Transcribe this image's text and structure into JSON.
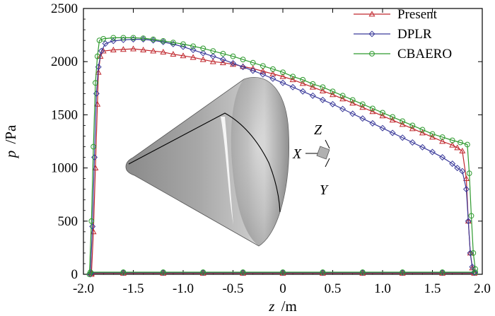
{
  "chart_data": {
    "type": "line",
    "xlabel": {
      "var": "z",
      "unit": "/m"
    },
    "ylabel": {
      "var": "p",
      "unit": "/Pa"
    },
    "xlim": [
      -2.0,
      2.0
    ],
    "ylim": [
      0,
      2500
    ],
    "xticks": [
      -2.0,
      -1.5,
      -1.0,
      -0.5,
      0,
      0.5,
      1.0,
      1.5,
      2.0
    ],
    "xtick_labels": [
      "-2.0",
      "-1.5",
      "-1.0",
      "-0.5",
      "0",
      "0.5",
      "1.0",
      "1.5",
      "2.0"
    ],
    "yticks": [
      0,
      500,
      1000,
      1500,
      2000,
      2500
    ],
    "ytick_labels": [
      "0",
      "500",
      "1000",
      "1500",
      "2000",
      "2500"
    ],
    "legend_position": "top-right",
    "series": [
      {
        "name": "Present",
        "color": "#c0272d",
        "marker": "triangle",
        "x": [
          -1.92,
          -1.9,
          -1.88,
          -1.86,
          -1.85,
          -1.83,
          -1.8,
          -1.7,
          -1.6,
          -1.5,
          -1.4,
          -1.3,
          -1.2,
          -1.1,
          -1.0,
          -0.9,
          -0.8,
          -0.7,
          -0.6,
          -0.5,
          -0.4,
          -0.3,
          -0.2,
          -0.1,
          0.0,
          0.1,
          0.2,
          0.3,
          0.4,
          0.5,
          0.6,
          0.7,
          0.8,
          0.9,
          1.0,
          1.1,
          1.2,
          1.3,
          1.4,
          1.5,
          1.6,
          1.7,
          1.75,
          1.8,
          1.84,
          1.86,
          1.88,
          1.9,
          1.92,
          -1.92,
          -1.6,
          -1.2,
          -0.8,
          -0.4,
          0.0,
          0.4,
          0.8,
          1.2,
          1.6,
          1.92
        ],
        "y": [
          0,
          400,
          1000,
          1600,
          1900,
          2050,
          2100,
          2110,
          2115,
          2120,
          2110,
          2100,
          2090,
          2070,
          2055,
          2040,
          2020,
          2000,
          1990,
          1975,
          1955,
          1935,
          1910,
          1885,
          1860,
          1830,
          1795,
          1760,
          1725,
          1690,
          1650,
          1610,
          1570,
          1530,
          1490,
          1450,
          1410,
          1370,
          1330,
          1290,
          1250,
          1215,
          1190,
          1160,
          900,
          500,
          200,
          60,
          20,
          10,
          10,
          10,
          10,
          10,
          10,
          10,
          10,
          10,
          10,
          10
        ]
      },
      {
        "name": "DPLR",
        "color": "#3a3a9a",
        "marker": "diamond",
        "x": [
          -1.93,
          -1.91,
          -1.89,
          -1.87,
          -1.85,
          -1.82,
          -1.78,
          -1.7,
          -1.6,
          -1.5,
          -1.4,
          -1.3,
          -1.2,
          -1.1,
          -1.0,
          -0.9,
          -0.8,
          -0.7,
          -0.6,
          -0.5,
          -0.4,
          -0.3,
          -0.2,
          -0.1,
          0.0,
          0.1,
          0.2,
          0.3,
          0.4,
          0.5,
          0.6,
          0.7,
          0.8,
          0.9,
          1.0,
          1.1,
          1.2,
          1.3,
          1.4,
          1.5,
          1.6,
          1.7,
          1.75,
          1.8,
          1.84,
          1.86,
          1.88,
          1.9,
          1.92,
          -1.92,
          -1.6,
          -1.2,
          -0.8,
          -0.4,
          0.0,
          0.4,
          0.8,
          1.2,
          1.6,
          1.92
        ],
        "y": [
          0,
          450,
          1100,
          1700,
          1950,
          2100,
          2170,
          2195,
          2205,
          2210,
          2210,
          2200,
          2185,
          2165,
          2140,
          2110,
          2080,
          2050,
          2020,
          1985,
          1950,
          1915,
          1880,
          1840,
          1800,
          1760,
          1720,
          1680,
          1640,
          1600,
          1555,
          1510,
          1465,
          1420,
          1375,
          1330,
          1285,
          1240,
          1195,
          1150,
          1100,
          1040,
          1000,
          970,
          800,
          500,
          200,
          70,
          20,
          15,
          15,
          15,
          15,
          15,
          15,
          15,
          15,
          15,
          15,
          15
        ]
      },
      {
        "name": "CBAERO",
        "color": "#2e9a2e",
        "marker": "circle",
        "x": [
          -1.94,
          -1.92,
          -1.9,
          -1.88,
          -1.86,
          -1.84,
          -1.8,
          -1.7,
          -1.6,
          -1.5,
          -1.4,
          -1.3,
          -1.2,
          -1.1,
          -1.0,
          -0.9,
          -0.8,
          -0.7,
          -0.6,
          -0.5,
          -0.4,
          -0.3,
          -0.2,
          -0.1,
          0.0,
          0.1,
          0.2,
          0.3,
          0.4,
          0.5,
          0.6,
          0.7,
          0.8,
          0.9,
          1.0,
          1.1,
          1.2,
          1.3,
          1.4,
          1.5,
          1.6,
          1.7,
          1.78,
          1.85,
          1.87,
          1.89,
          1.91,
          1.93,
          -1.93,
          -1.6,
          -1.2,
          -0.8,
          -0.4,
          0.0,
          0.4,
          0.8,
          1.2,
          1.6,
          1.93
        ],
        "y": [
          0,
          500,
          1200,
          1800,
          2050,
          2200,
          2215,
          2225,
          2225,
          2225,
          2220,
          2210,
          2195,
          2180,
          2165,
          2145,
          2125,
          2100,
          2075,
          2050,
          2020,
          1990,
          1960,
          1930,
          1900,
          1860,
          1830,
          1790,
          1760,
          1720,
          1680,
          1640,
          1600,
          1560,
          1520,
          1480,
          1440,
          1400,
          1360,
          1320,
          1290,
          1260,
          1240,
          1220,
          950,
          550,
          200,
          50,
          20,
          20,
          20,
          20,
          20,
          20,
          20,
          20,
          20,
          20,
          20
        ]
      }
    ],
    "inset": {
      "axis_labels": [
        "Z",
        "X",
        "Y"
      ]
    }
  }
}
